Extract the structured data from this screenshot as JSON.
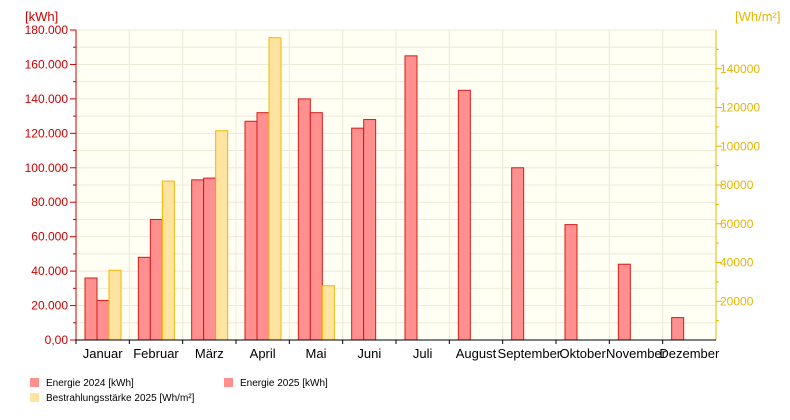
{
  "chart_data": {
    "type": "bar",
    "categories": [
      "Januar",
      "Februar",
      "März",
      "April",
      "Mai",
      "Juni",
      "Juli",
      "August",
      "September",
      "Oktober",
      "November",
      "Dezember"
    ],
    "y_left": {
      "unit": "[kWh]",
      "ylim": [
        0,
        180000
      ],
      "ticks": [
        "0,00",
        "20.000",
        "40.000",
        "60.000",
        "80.000",
        "100.000",
        "120.000",
        "140.000",
        "160.000",
        "180.000"
      ]
    },
    "y_right": {
      "unit": "[Wh/m²]",
      "ylim": [
        0,
        160000
      ],
      "ticks": [
        "20000",
        "40000",
        "60000",
        "80000",
        "100000",
        "120000",
        "140000"
      ]
    },
    "series": [
      {
        "name": "Energie 2024 [kWh]",
        "axis": "left",
        "color": "#ff9090",
        "stroke": "#d41a1a",
        "values": [
          36000,
          48000,
          93000,
          127000,
          140000,
          123000,
          165000,
          145000,
          100000,
          67000,
          44000,
          13000
        ]
      },
      {
        "name": "Energie 2025 [kWh]",
        "axis": "left",
        "color": "#ff9090",
        "stroke": "#d41a1a",
        "values": [
          23000,
          70000,
          94000,
          132000,
          132000,
          128000,
          null,
          null,
          null,
          null,
          null,
          null
        ]
      },
      {
        "name": "Bestrahlungsstärke 2025 [Wh/m²]",
        "axis": "right",
        "color": "#ffe3a0",
        "stroke": "#f5b400",
        "values": [
          36000,
          82000,
          108000,
          156000,
          28000,
          null,
          null,
          null,
          null,
          null,
          null,
          null
        ]
      }
    ],
    "grid": true,
    "legend": "bottom"
  }
}
